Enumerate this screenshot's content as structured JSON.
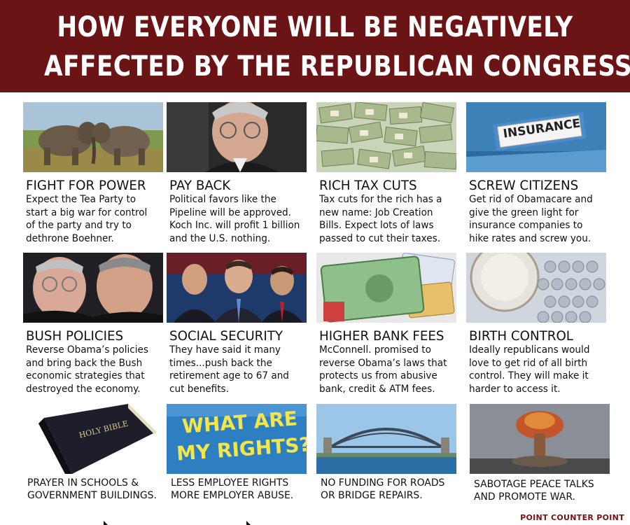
{
  "banner": {
    "line1": "HOW EVERYONE WILL BE NEGATIVELY",
    "line2": "AFFECTED BY THE REPUBLICAN CONGRESS"
  },
  "items": [
    {
      "heading": "FIGHT FOR POWER",
      "body": "Expect the Tea Party to\nstart a big war for control\nof the party and try to\ndethrone Boehner."
    },
    {
      "heading": "PAY BACK",
      "body": "Political favors like the\nPipeline will be approved.\nKoch Inc. will profit 1 billion\nand the U.S. nothing."
    },
    {
      "heading": "RICH TAX CUTS",
      "body": "Tax cuts for the rich has a\nnew name: Job Creation\nBills. Expect lots of  laws\npassed to cut their taxes."
    },
    {
      "heading": "SCREW CITIZENS",
      "body": "Get rid of Obamacare and\ngive the green light for\ninsurance companies to\nhike rates and screw you.",
      "image_text": "INSURANCE"
    },
    {
      "heading": "BUSH POLICIES",
      "body": "Reverse Obama’s policies\nand bring back the Bush\neconomic strategies that\ndestroyed the economy."
    },
    {
      "heading": "SOCIAL SECURITY",
      "body": "They have said it many\ntimes...push back the\nretirement age to 67 and\ncut benefits."
    },
    {
      "heading": "HIGHER BANK FEES",
      "body": "McConnell. promised to\nreverse Obama’s laws that\nprotects us from abusive\nbank, credit & ATM fees."
    },
    {
      "heading": "BIRTH CONTROL",
      "body": "Ideally republicans would\nlove to get rid of all birth\ncontrol. They will make it\nharder to access it."
    },
    {
      "caption": "PRAYER IN SCHOOLS &\nGOVERNMENT BUILDINGS.",
      "image_text": "HOLY BIBLE"
    },
    {
      "caption": "LESS EMPLOYEE RIGHTS\nMORE EMPLOYER ABUSE.",
      "image_text_1": "WHAT ARE",
      "image_text_2": "MY RIGHTS?"
    },
    {
      "caption": "NO FUNDING FOR ROADS\nOR BRIDGE REPAIRS."
    },
    {
      "caption": "SABOTAGE PEACE TALKS\nAND PROMOTE WAR."
    }
  ],
  "credit": "POINT COUNTER POINT",
  "colors": {
    "banner": "#6b1416",
    "credit": "#7a1015"
  }
}
